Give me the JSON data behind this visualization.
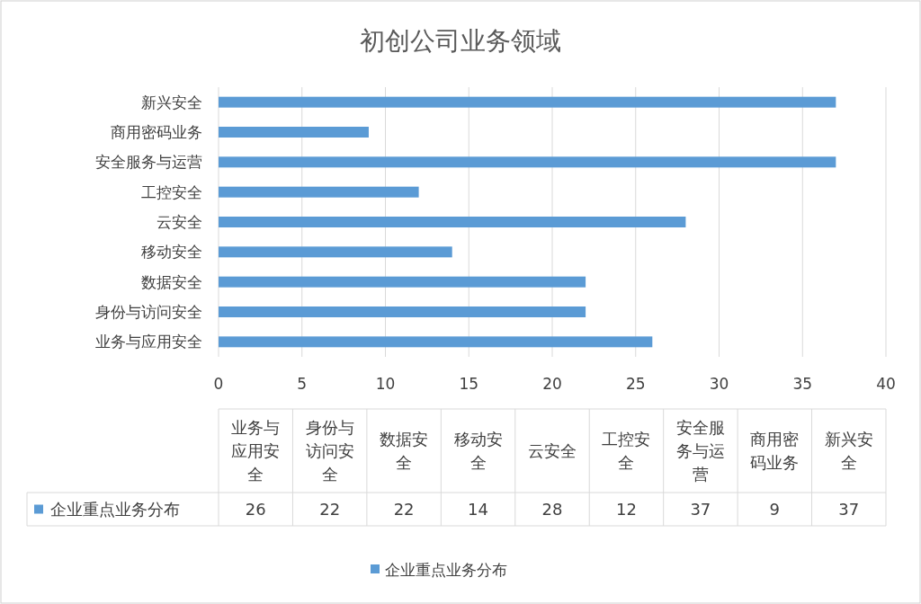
{
  "chart_data": [
    {
      "type": "bar",
      "orientation": "horizontal",
      "title": "初创公司业务领域",
      "categories": [
        "新兴安全",
        "商用密码业务",
        "安全服务与运营",
        "工控安全",
        "云安全",
        "移动安全",
        "数据安全",
        "身份与访问安全",
        "业务与应用安全"
      ],
      "series": [
        {
          "name": "企业重点业务分布",
          "color": "#5b9bd5",
          "values": [
            37,
            9,
            37,
            12,
            28,
            14,
            22,
            22,
            26
          ]
        }
      ],
      "xlim": [
        0,
        40
      ],
      "xticks": [
        0,
        5,
        10,
        15,
        20,
        25,
        30,
        35,
        40
      ],
      "grid": "x",
      "legend": "bottom"
    },
    {
      "type": "other",
      "categories": [
        "业务与应用安全",
        "身份与访问安全",
        "数据安全",
        "移动安全",
        "云安全",
        "工控安全",
        "安全服务与运营",
        "商用密码业务",
        "新兴安全"
      ],
      "series": [
        {
          "name": "企业重点业务分布",
          "color": "#5b9bd5",
          "values": [
            26,
            22,
            22,
            14,
            28,
            12,
            37,
            9,
            37
          ]
        }
      ],
      "data_labels": true
    }
  ]
}
